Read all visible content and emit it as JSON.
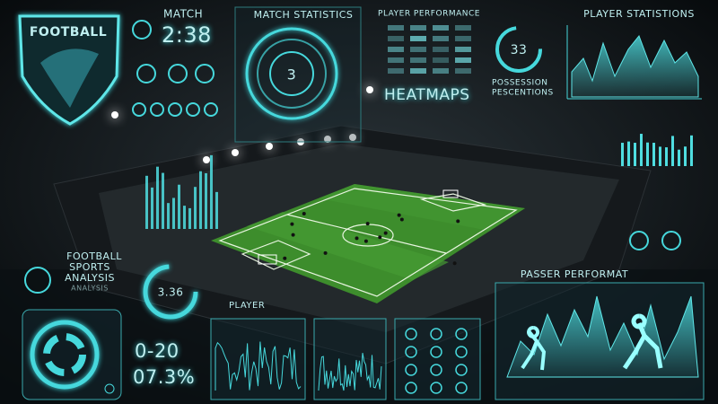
{
  "logo": {
    "label": "FOOTBALL"
  },
  "match": {
    "label": "MATCH",
    "clock": "2:38"
  },
  "match_statistics": {
    "title": "MATCH STATISTICS",
    "dial": "3"
  },
  "player_performance": {
    "title": "PLAYER PERFORMANCE",
    "subtitle": "HEATMAPS"
  },
  "possession": {
    "value": "33",
    "label_lines": [
      "POSSESSION",
      "PESCENTIONS"
    ]
  },
  "player_statistics": {
    "title": "PLAYER STATISTIONS"
  },
  "analysis": {
    "lines": [
      "FOOTBALL",
      "SPORTS",
      "ANALYSIS",
      "ANALYSIS"
    ]
  },
  "gauge": {
    "value": "3.36"
  },
  "score": {
    "value": "0-20",
    "percent": "07.3%"
  },
  "player_panel": {
    "title": "PLAYER"
  },
  "passer": {
    "title": "PASSER PERFORMAT"
  }
}
